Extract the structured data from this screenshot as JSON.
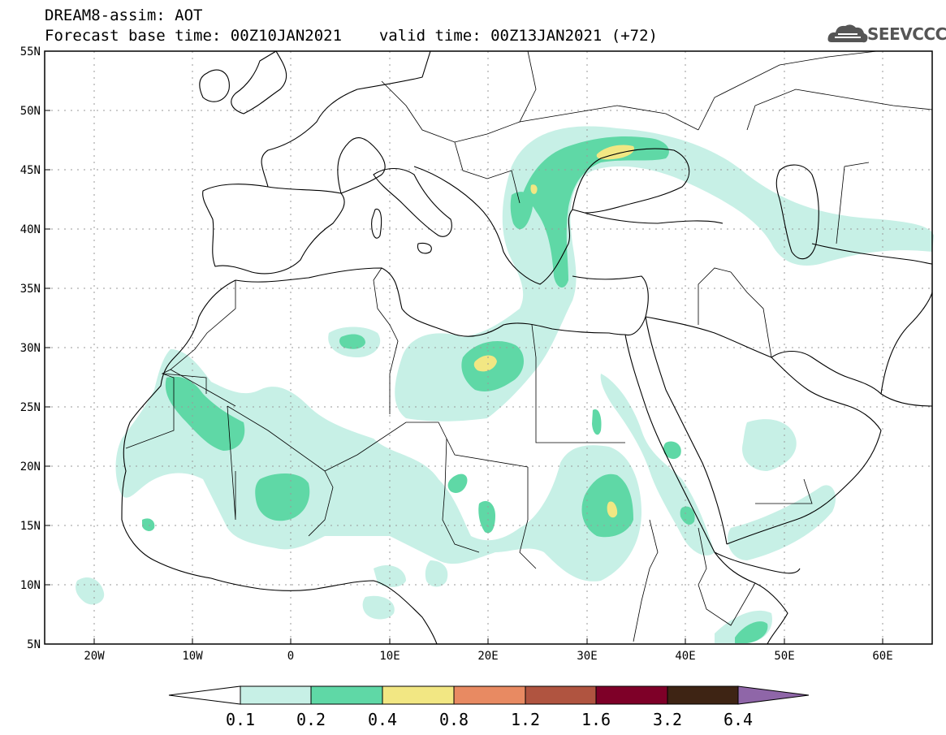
{
  "header": {
    "title": "DREAM8-assim: AOT",
    "forecast_base": "Forecast base time: 00Z10JAN2021",
    "valid_time": "valid time: 00Z13JAN2021 (+72)",
    "logo_text": "SEEVCCC"
  },
  "map": {
    "lon_range": [
      -25,
      65
    ],
    "lat_range": [
      5,
      55
    ],
    "lat_labels": [
      "55N",
      "50N",
      "45N",
      "40N",
      "35N",
      "30N",
      "25N",
      "20N",
      "15N",
      "10N",
      "5N"
    ],
    "lon_labels": [
      "20W",
      "10W",
      "0",
      "10E",
      "20E",
      "30E",
      "40E",
      "50E",
      "60E"
    ]
  },
  "colorbar": {
    "levels": [
      "0.1",
      "0.2",
      "0.4",
      "0.8",
      "1.2",
      "1.6",
      "3.2",
      "6.4"
    ],
    "colors": [
      "#c7f0e6",
      "#5fd8a6",
      "#f2e783",
      "#e88a62",
      "#b05440",
      "#7e0028",
      "#3e2414",
      "#8f66a8"
    ]
  },
  "colors": {
    "land_border": "#000000",
    "grid": "#9a9a9a"
  }
}
